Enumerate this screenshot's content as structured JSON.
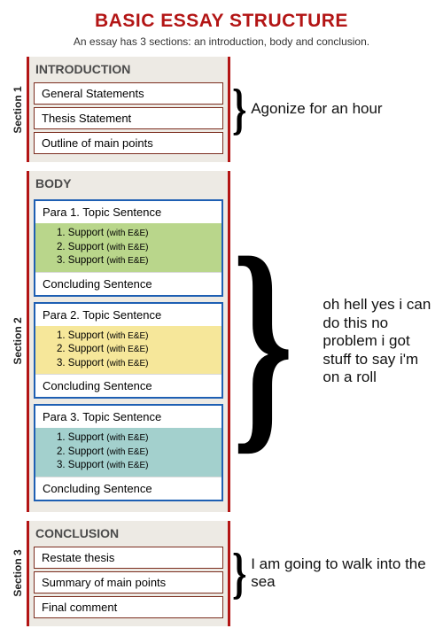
{
  "title": {
    "text": "BASIC ESSAY STRUCTURE",
    "color": "#b31515",
    "fontsize": 21
  },
  "subtitle": {
    "text": "An essay has 3 sections:  an introduction, body and conclusion.",
    "color": "#333333",
    "fontsize": 12
  },
  "colors": {
    "red_accent": "#b31515",
    "section_bg": "#edeae4",
    "item_border": "#7b2d1e",
    "para_border": "#1e5fb3",
    "support_bg_1": "#b9d68b",
    "support_bg_2": "#f6e79a",
    "support_bg_3": "#a3d0cd",
    "heading_color": "#4a4a4a",
    "vlabel_color": "#222222",
    "brace_color": "#000000"
  },
  "sections": {
    "intro": {
      "vlabel": "Section 1",
      "heading": "INTRODUCTION",
      "items": [
        "General Statements",
        "Thesis Statement",
        "Outline of main points"
      ],
      "annotation": "Agonize for an hour"
    },
    "body": {
      "vlabel": "Section 2",
      "heading": "BODY",
      "paras": [
        {
          "head": "Para 1.  Topic Sentence",
          "supports": [
            "1. Support",
            "2. Support",
            "3. Support"
          ],
          "support_note": "(with E&E)",
          "foot": "Concluding Sentence"
        },
        {
          "head": "Para 2.  Topic Sentence",
          "supports": [
            "1. Support",
            "2. Support",
            "3. Support"
          ],
          "support_note": "(with E&E)",
          "foot": "Concluding Sentence"
        },
        {
          "head": "Para 3.  Topic Sentence",
          "supports": [
            "1. Support",
            "2. Support",
            "3. Support"
          ],
          "support_note": "(with E&E)",
          "foot": "Concluding Sentence"
        }
      ],
      "annotation": "oh hell yes i can do this no problem i got stuff to say i'm on a roll"
    },
    "conclusion": {
      "vlabel": "Section 3",
      "heading": "CONCLUSION",
      "items": [
        "Restate thesis",
        "Summary of main points",
        "Final comment"
      ],
      "annotation": "I am going to walk into the sea"
    }
  }
}
